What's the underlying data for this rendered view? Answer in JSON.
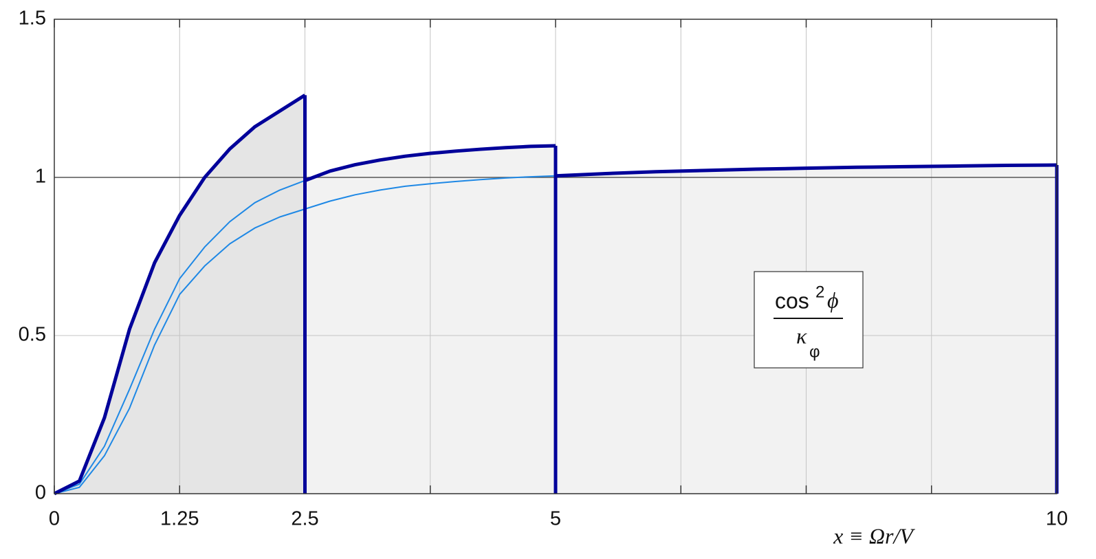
{
  "chart_data": {
    "type": "line",
    "xlabel": "x ≡ Ωr/V",
    "annotation": {
      "numerator": "cos",
      "numerator_sup": "2",
      "numerator_symbol": "ϕ",
      "denominator": "κ",
      "denominator_sub": "φ"
    },
    "xlim": [
      0,
      10
    ],
    "ylim": [
      0,
      1.5
    ],
    "xticks": [
      0,
      1.25,
      2.5,
      5,
      10
    ],
    "xgrid": [
      0,
      1.25,
      2.5,
      3.75,
      5,
      6.25,
      7.5,
      8.75,
      10
    ],
    "yticks": [
      0,
      0.5,
      1,
      1.5
    ],
    "hline": 1,
    "grid": true,
    "series": [
      {
        "color": "#00009a",
        "fill": "#e5e5e5",
        "width": 5,
        "x": [
          0,
          0.25,
          0.5,
          0.75,
          1,
          1.25,
          1.5,
          1.75,
          2,
          2.25,
          2.5
        ],
        "values": [
          0,
          0.04,
          0.24,
          0.52,
          0.73,
          0.88,
          1.0,
          1.09,
          1.16,
          1.21,
          1.26
        ]
      },
      {
        "color": "#00009a",
        "fill": "#f2f2f2",
        "width": 5,
        "x": [
          2.5,
          2.75,
          3,
          3.25,
          3.5,
          3.75,
          4,
          4.25,
          4.5,
          4.75,
          5
        ],
        "values": [
          0.99,
          1.02,
          1.04,
          1.055,
          1.067,
          1.076,
          1.083,
          1.089,
          1.094,
          1.098,
          1.1
        ]
      },
      {
        "color": "#00009a",
        "fill": "#f2f2f2",
        "width": 5,
        "x": [
          5,
          5.5,
          6,
          6.5,
          7,
          7.5,
          8,
          8.5,
          9,
          9.5,
          10
        ],
        "values": [
          1.005,
          1.012,
          1.018,
          1.022,
          1.026,
          1.029,
          1.032,
          1.034,
          1.036,
          1.038,
          1.039
        ]
      },
      {
        "color": "#1e88e5",
        "width": 2,
        "x": [
          0,
          0.25,
          0.5,
          0.75,
          1,
          1.25,
          1.5,
          1.75,
          2,
          2.25,
          2.5
        ],
        "values": [
          0,
          0.03,
          0.15,
          0.33,
          0.52,
          0.68,
          0.78,
          0.86,
          0.92,
          0.96,
          0.99
        ]
      },
      {
        "color": "#1e88e5",
        "width": 2,
        "x": [
          0,
          0.25,
          0.5,
          0.75,
          1,
          1.25,
          1.5,
          1.75,
          2,
          2.25,
          2.5,
          2.75,
          3,
          3.25,
          3.5,
          3.75,
          4,
          4.25,
          4.5,
          4.75,
          5
        ],
        "values": [
          0,
          0.02,
          0.12,
          0.27,
          0.47,
          0.63,
          0.72,
          0.79,
          0.84,
          0.875,
          0.9,
          0.925,
          0.945,
          0.96,
          0.972,
          0.98,
          0.987,
          0.993,
          0.998,
          1.002,
          1.005
        ]
      }
    ]
  }
}
